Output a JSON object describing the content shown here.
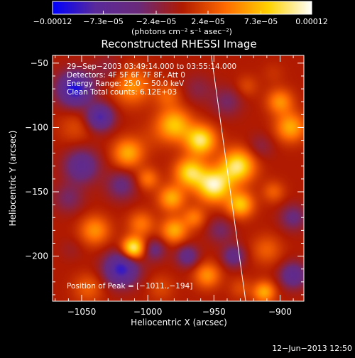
{
  "chart_data": {
    "type": "heatmap",
    "title": "Reconstructed RHESSI Image",
    "xlabel": "Heliocentric X (arcsec)",
    "ylabel": "Heliocentric Y (arcsec)",
    "xlim": [
      -1072,
      -882
    ],
    "ylim": [
      -235,
      -44
    ],
    "x_ticks": [
      {
        "value": -1050,
        "label": "−1050"
      },
      {
        "value": -1000,
        "label": "−1000"
      },
      {
        "value": -950,
        "label": "−950"
      },
      {
        "value": -900,
        "label": "−900"
      }
    ],
    "y_ticks": [
      {
        "value": -50,
        "label": "−50"
      },
      {
        "value": -100,
        "label": "−100"
      },
      {
        "value": -150,
        "label": "−150"
      },
      {
        "value": -200,
        "label": "−200"
      }
    ],
    "colorbar": {
      "range": [
        -0.00012,
        0.00012
      ],
      "ticks": [
        {
          "value": -0.00012,
          "label": "−0.00012"
        },
        {
          "value": -7.3e-05,
          "label": "−7.3e−05"
        },
        {
          "value": -2.4e-05,
          "label": "−2.4e−05"
        },
        {
          "value": 2.4e-05,
          "label": "2.4e−05"
        },
        {
          "value": 7.3e-05,
          "label": "7.3e−05"
        },
        {
          "value": 0.00012,
          "label": "0.00012"
        }
      ],
      "units": "(photons cm⁻² s⁻¹ asec⁻²)",
      "colors": [
        "#0000ff",
        "#5a2a9a",
        "#6a2a7a",
        "#b01a00",
        "#ff6a00",
        "#ffd200",
        "#ffffff"
      ]
    },
    "annotations": [
      "29−Sep−2003 03:49:14.000 to 03:55:14.000",
      "Detectors: 4F 5F 6F 7F 8F, Att 0",
      "Energy Range: 25.0 − 50.0 keV",
      "Clean      Total counts: 6.12E+03"
    ],
    "peak_label": "Position of Peak = [−1011.,−194]",
    "limb_line": {
      "points": [
        [
          -952,
          -44
        ],
        [
          -926,
          -235
        ]
      ]
    },
    "grid": false,
    "blobs": [
      {
        "x": -1055,
        "y": -70,
        "s": 9,
        "v": -1.0
      },
      {
        "x": -1030,
        "y": -55,
        "s": 8,
        "v": -0.2
      },
      {
        "x": -1012,
        "y": -68,
        "s": 10,
        "v": 0.5
      },
      {
        "x": -1055,
        "y": -100,
        "s": 9,
        "v": 0.2
      },
      {
        "x": -1036,
        "y": -92,
        "s": 7,
        "v": -0.8
      },
      {
        "x": -1015,
        "y": -120,
        "s": 8,
        "v": 0.6
      },
      {
        "x": -998,
        "y": -108,
        "s": 9,
        "v": 0.1
      },
      {
        "x": -980,
        "y": -98,
        "s": 9,
        "v": 0.7
      },
      {
        "x": -960,
        "y": -110,
        "s": 8,
        "v": 0.9
      },
      {
        "x": -985,
        "y": -75,
        "s": 7,
        "v": 0.3
      },
      {
        "x": -962,
        "y": -70,
        "s": 8,
        "v": -0.2
      },
      {
        "x": -940,
        "y": -80,
        "s": 8,
        "v": -0.3
      },
      {
        "x": -925,
        "y": -68,
        "s": 6,
        "v": 0.2
      },
      {
        "x": -900,
        "y": -80,
        "s": 7,
        "v": 0.5
      },
      {
        "x": -905,
        "y": -58,
        "s": 6,
        "v": 0.1
      },
      {
        "x": -892,
        "y": -100,
        "s": 8,
        "v": 0.6
      },
      {
        "x": -915,
        "y": -115,
        "s": 7,
        "v": -0.2
      },
      {
        "x": -932,
        "y": -130,
        "s": 9,
        "v": 0.9
      },
      {
        "x": -950,
        "y": -145,
        "s": 9,
        "v": 1.0
      },
      {
        "x": -930,
        "y": -160,
        "s": 7,
        "v": 0.7
      },
      {
        "x": -968,
        "y": -135,
        "s": 8,
        "v": 0.8
      },
      {
        "x": -982,
        "y": -155,
        "s": 7,
        "v": 0.6
      },
      {
        "x": -1000,
        "y": -140,
        "s": 6,
        "v": 0.4
      },
      {
        "x": -1020,
        "y": -145,
        "s": 8,
        "v": -0.4
      },
      {
        "x": -1050,
        "y": -130,
        "s": 9,
        "v": -0.6
      },
      {
        "x": -1060,
        "y": -155,
        "s": 8,
        "v": -0.3
      },
      {
        "x": -1040,
        "y": -180,
        "s": 8,
        "v": 0.5
      },
      {
        "x": -1058,
        "y": -195,
        "s": 6,
        "v": -0.1
      },
      {
        "x": -1020,
        "y": -210,
        "s": 9,
        "v": -0.9
      },
      {
        "x": -1045,
        "y": -225,
        "s": 8,
        "v": 0.3
      },
      {
        "x": -1005,
        "y": -175,
        "s": 7,
        "v": 0.4
      },
      {
        "x": -1011,
        "y": -194,
        "s": 6,
        "v": 1.0
      },
      {
        "x": -995,
        "y": -195,
        "s": 6,
        "v": -0.4
      },
      {
        "x": -980,
        "y": -180,
        "s": 7,
        "v": 0.6
      },
      {
        "x": -970,
        "y": -200,
        "s": 6,
        "v": -0.5
      },
      {
        "x": -990,
        "y": -225,
        "s": 7,
        "v": 0.2
      },
      {
        "x": -955,
        "y": -215,
        "s": 7,
        "v": 0.5
      },
      {
        "x": -965,
        "y": -170,
        "s": 6,
        "v": 0.4
      },
      {
        "x": -945,
        "y": -180,
        "s": 7,
        "v": -0.3
      },
      {
        "x": -935,
        "y": -200,
        "s": 6,
        "v": -0.5
      },
      {
        "x": -930,
        "y": -225,
        "s": 6,
        "v": 0.2
      },
      {
        "x": -910,
        "y": -195,
        "s": 8,
        "v": 0.3
      },
      {
        "x": -890,
        "y": -170,
        "s": 7,
        "v": -0.4
      },
      {
        "x": -890,
        "y": -215,
        "s": 7,
        "v": -0.6
      },
      {
        "x": -905,
        "y": -150,
        "s": 6,
        "v": 0.3
      },
      {
        "x": -912,
        "y": -228,
        "s": 6,
        "v": 0.6
      }
    ]
  },
  "footer": {
    "date": "12−Jun−2013 12:50"
  }
}
